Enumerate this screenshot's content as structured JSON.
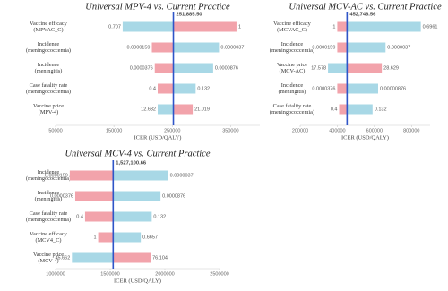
{
  "chart_data": [
    {
      "type": "tornado",
      "title": "Universal MPV-4 vs. Current Practice",
      "xlabel": "ICER (USD/QALY)",
      "xlim": [
        50000,
        400000
      ],
      "xticks": [
        50000,
        150000,
        250000,
        350000
      ],
      "base": {
        "value": 251885.5,
        "label": "251,885.50"
      },
      "base_color": "#2f55c8",
      "categories": [
        [
          "Vaccine efficacy",
          "(MPVAC_C)"
        ],
        [
          "Incidence",
          "(meningococcemia)"
        ],
        [
          "Incidence",
          "(meningitis)"
        ],
        [
          "Case fatality rate",
          "(meningococcemia)"
        ],
        [
          "Vaccine price",
          "(MPV-4)"
        ]
      ],
      "low_values": [
        165000,
        215000,
        220000,
        225000,
        225000
      ],
      "high_values": [
        360000,
        330000,
        320000,
        290000,
        285000
      ],
      "low_labels": [
        "0.707",
        "0.0000159",
        "0.0000376",
        "0.4",
        "12.632"
      ],
      "high_labels": [
        "1",
        "0.0000037",
        "0.0000876",
        "0.132",
        "21.019"
      ],
      "low_colors": [
        "#a8d8e6",
        "#f2a3ab",
        "#f2a3ab",
        "#f2a3ab",
        "#a8d8e6"
      ],
      "high_colors": [
        "#f2a3ab",
        "#a8d8e6",
        "#a8d8e6",
        "#a8d8e6",
        "#f2a3ab"
      ]
    },
    {
      "type": "tornado",
      "title": "Universal MCV-AC vs. Current Practice",
      "xlabel": "ICER (USD/QALY)",
      "xlim": [
        200000,
        900000
      ],
      "xticks": [
        200000,
        400000,
        600000,
        800000
      ],
      "base": {
        "value": 452746.56,
        "label": "452,746.56"
      },
      "base_color": "#2f55c8",
      "categories": [
        [
          "Vaccine efficacy",
          "(MCVAC_C)"
        ],
        [
          "Incidence",
          "(meningococcemia)"
        ],
        [
          "Vaccine price",
          "(MCV-AC)"
        ],
        [
          "Incidence",
          "(meningitis)"
        ],
        [
          "Case fatality rate",
          "(meningococcemia)"
        ]
      ],
      "low_values": [
        400000,
        400000,
        350000,
        400000,
        410000
      ],
      "high_values": [
        850000,
        660000,
        640000,
        620000,
        590000
      ],
      "low_labels": [
        "1",
        "0.0000159",
        "17.578",
        "0.0000376",
        "0.4"
      ],
      "high_labels": [
        "0.6961",
        "0.0000037",
        "28.629",
        "0.00000876",
        "0.132"
      ],
      "low_colors": [
        "#f2a3ab",
        "#f2a3ab",
        "#a8d8e6",
        "#f2a3ab",
        "#f2a3ab"
      ],
      "high_colors": [
        "#a8d8e6",
        "#a8d8e6",
        "#f2a3ab",
        "#a8d8e6",
        "#a8d8e6"
      ]
    },
    {
      "type": "tornado",
      "title": "Universal MCV-4 vs. Current Practice",
      "xlabel": "ICER (USD/QALY)",
      "xlim": [
        1000000,
        2500000
      ],
      "xticks": [
        1000000,
        1500000,
        2000000,
        2500000
      ],
      "base": {
        "value": 1527100.66,
        "label": "1,527,100.66"
      },
      "base_color": "#2f55c8",
      "categories": [
        [
          "Incidence",
          "(meningococcemia)"
        ],
        [
          "Incidence",
          "(meningitis)"
        ],
        [
          "Case fatality rate",
          "(meningococcemia)"
        ],
        [
          "Vaccine efficacy",
          "(MCV4_C)"
        ],
        [
          "Vaccine price",
          "(MCV-4)"
        ]
      ],
      "low_values": [
        1130000,
        1180000,
        1270000,
        1390000,
        1150000
      ],
      "high_values": [
        2030000,
        1960000,
        1880000,
        1780000,
        1870000
      ],
      "low_labels": [
        "0.0000159",
        "0.0000376",
        "0.4",
        "1",
        "45.662"
      ],
      "high_labels": [
        "0.0000037",
        "0.0000876",
        "0.132",
        "0.6657",
        "76.104"
      ],
      "low_colors": [
        "#f2a3ab",
        "#f2a3ab",
        "#f2a3ab",
        "#f2a3ab",
        "#a8d8e6"
      ],
      "high_colors": [
        "#a8d8e6",
        "#a8d8e6",
        "#a8d8e6",
        "#a8d8e6",
        "#f2a3ab"
      ]
    }
  ]
}
